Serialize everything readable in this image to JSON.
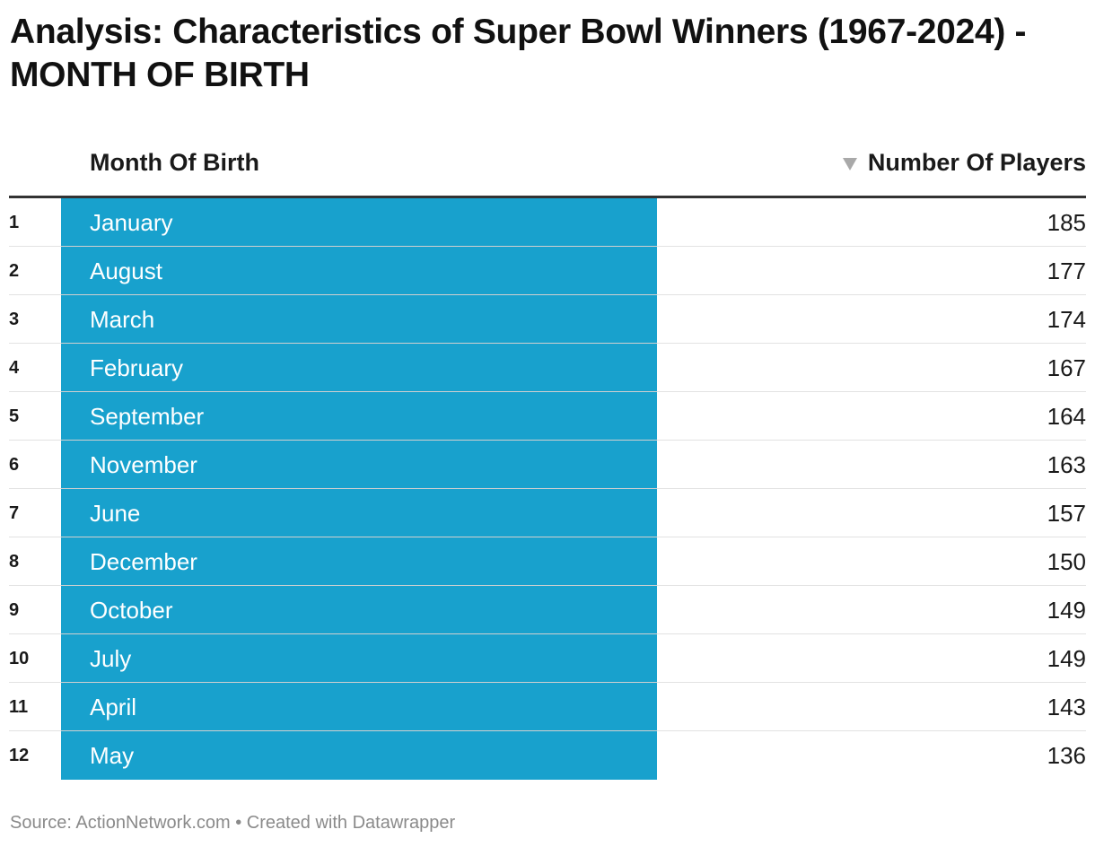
{
  "title": "Analysis: Characteristics of Super Bowl Winners (1967-2024) - MONTH OF BIRTH",
  "columns": {
    "month": "Month Of Birth",
    "players": "Number Of Players",
    "sort_icon": "sort-descending-icon"
  },
  "colors": {
    "bar": "#18a1cd",
    "sort_icon": "#a9a9a9"
  },
  "chart_data": {
    "type": "table",
    "title": "Analysis: Characteristics of Super Bowl Winners (1967-2024) - MONTH OF BIRTH",
    "columns": [
      "Month Of Birth",
      "Number Of Players"
    ],
    "rows": [
      {
        "rank": "1",
        "month": "January",
        "players": "185"
      },
      {
        "rank": "2",
        "month": "August",
        "players": "177"
      },
      {
        "rank": "3",
        "month": "March",
        "players": "174"
      },
      {
        "rank": "4",
        "month": "February",
        "players": "167"
      },
      {
        "rank": "5",
        "month": "September",
        "players": "164"
      },
      {
        "rank": "6",
        "month": "November",
        "players": "163"
      },
      {
        "rank": "7",
        "month": "June",
        "players": "157"
      },
      {
        "rank": "8",
        "month": "December",
        "players": "150"
      },
      {
        "rank": "9",
        "month": "October",
        "players": "149"
      },
      {
        "rank": "10",
        "month": "July",
        "players": "149"
      },
      {
        "rank": "11",
        "month": "April",
        "players": "143"
      },
      {
        "rank": "12",
        "month": "May",
        "players": "136"
      }
    ]
  },
  "footer": "Source: ActionNetwork.com • Created with Datawrapper"
}
